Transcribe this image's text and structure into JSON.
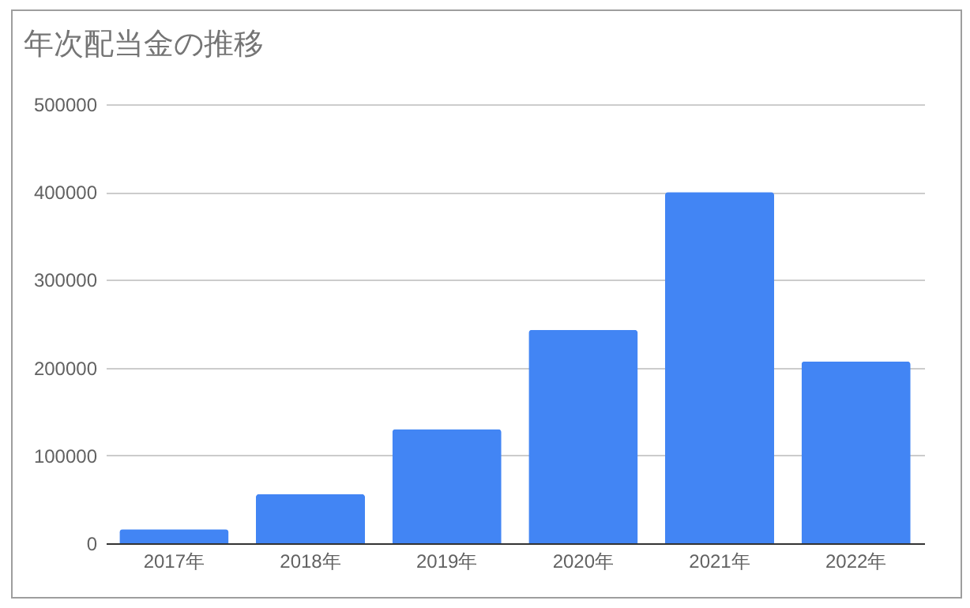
{
  "chart_data": {
    "type": "bar",
    "title": "年次配当金の推移",
    "categories": [
      "2017年",
      "2018年",
      "2019年",
      "2020年",
      "2021年",
      "2022年"
    ],
    "values": [
      16000,
      56000,
      130000,
      243000,
      400000,
      207000
    ],
    "color": "#4285f4",
    "ylim": [
      0,
      500000
    ],
    "yticks": [
      0,
      100000,
      200000,
      300000,
      400000,
      500000
    ],
    "grid": "y"
  }
}
